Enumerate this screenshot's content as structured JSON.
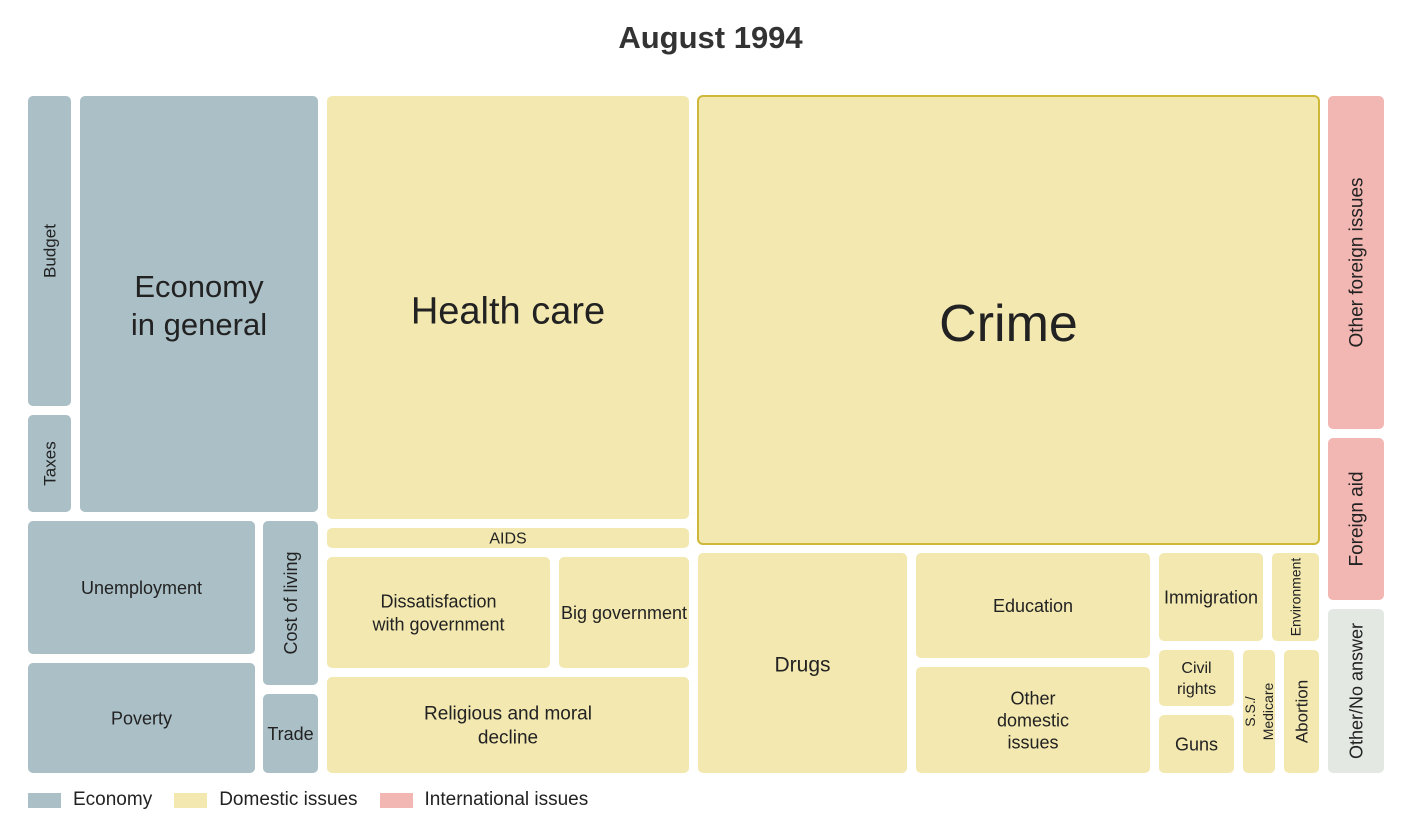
{
  "title": "August 1994",
  "legend": [
    {
      "label": "Economy",
      "color": "#aabfc6"
    },
    {
      "label": "Domestic issues",
      "color": "#f2e8b0"
    },
    {
      "label": "International issues",
      "color": "#f2b7b2"
    }
  ],
  "colors": {
    "Economy": "#aabfc6",
    "Domestic issues": "#f2e8b0",
    "International issues": "#f2b7b2",
    "Other": "#e3e8e3",
    "highlight_border": "#cdb83a"
  },
  "chart_data": {
    "type": "treemap",
    "title": "August 1994",
    "cells": [
      {
        "label": "Budget",
        "group": "Economy"
      },
      {
        "label": "Taxes",
        "group": "Economy"
      },
      {
        "label": "Economy in general",
        "lines": [
          "Economy",
          "in general"
        ],
        "group": "Economy"
      },
      {
        "label": "Unemployment",
        "group": "Economy"
      },
      {
        "label": "Cost of living",
        "group": "Economy"
      },
      {
        "label": "Poverty",
        "group": "Economy"
      },
      {
        "label": "Trade",
        "group": "Economy"
      },
      {
        "label": "Health care",
        "group": "Domestic issues"
      },
      {
        "label": "AIDS",
        "group": "Domestic issues"
      },
      {
        "label": "Dissatisfaction with government",
        "lines": [
          "Dissatisfaction",
          "with government"
        ],
        "group": "Domestic issues"
      },
      {
        "label": "Big government",
        "group": "Domestic issues"
      },
      {
        "label": "Religious and moral decline",
        "lines": [
          "Religious and moral",
          "decline"
        ],
        "group": "Domestic issues"
      },
      {
        "label": "Crime",
        "group": "Domestic issues",
        "highlighted": true
      },
      {
        "label": "Drugs",
        "group": "Domestic issues"
      },
      {
        "label": "Education",
        "group": "Domestic issues"
      },
      {
        "label": "Immigration",
        "group": "Domestic issues"
      },
      {
        "label": "Environment",
        "group": "Domestic issues"
      },
      {
        "label": "Other domestic issues",
        "lines": [
          "Other",
          "domestic",
          "issues"
        ],
        "group": "Domestic issues"
      },
      {
        "label": "Civil rights",
        "lines": [
          "Civil",
          "rights"
        ],
        "group": "Domestic issues"
      },
      {
        "label": "Guns",
        "group": "Domestic issues"
      },
      {
        "label": "S.S./ Medicare",
        "lines": [
          "S.S./",
          "Medicare"
        ],
        "group": "Domestic issues"
      },
      {
        "label": "Abortion",
        "group": "Domestic issues"
      },
      {
        "label": "Other foreign issues",
        "group": "International issues"
      },
      {
        "label": "Foreign aid",
        "group": "International issues"
      },
      {
        "label": "Other/No answer",
        "group": "Other"
      }
    ]
  }
}
